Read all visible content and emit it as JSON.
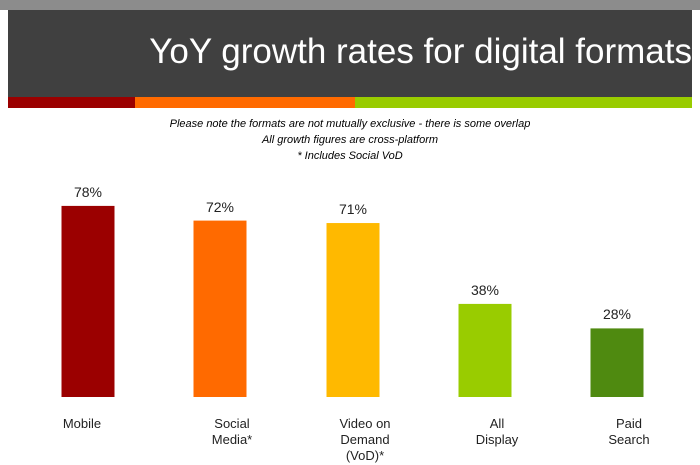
{
  "chart_data": {
    "type": "bar",
    "title": "YoY growth rates for digital formats",
    "notes": [
      "Please note the formats are not mutually exclusive - there is some overlap",
      "All growth figures are cross-platform",
      "* Includes Social VoD"
    ],
    "categories": [
      "Mobile",
      "Social Media*",
      "Video on Demand (VoD)*",
      "All Display",
      "Paid Search"
    ],
    "values": [
      78,
      72,
      71,
      38,
      28
    ],
    "value_labels": [
      "78%",
      "72%",
      "71%",
      "38%",
      "28%"
    ],
    "colors": [
      "#9b0000",
      "#ff6a00",
      "#ffb900",
      "#99cc00",
      "#4f8a10"
    ]
  }
}
